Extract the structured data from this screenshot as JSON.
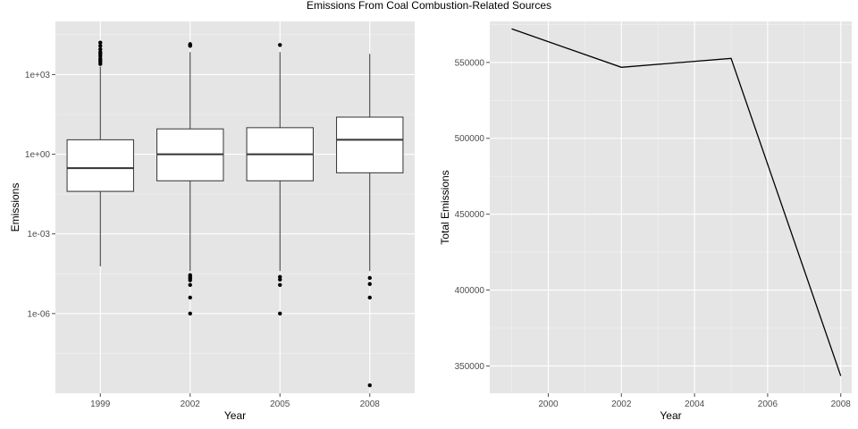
{
  "figure": {
    "title": "Emissions From Coal Combustion-Related Sources"
  },
  "chart_data": [
    {
      "type": "box",
      "panel": "left",
      "xlabel": "Year",
      "ylabel": "Emissions",
      "yscale": "log10",
      "ylim": [
        1e-09,
        100000
      ],
      "ytick_values": [
        1e-06,
        0.001,
        1,
        1000
      ],
      "ytick_labels": [
        "1e-06",
        "1e-03",
        "1e+00",
        "1e+03"
      ],
      "grid": true,
      "categories": [
        "1999",
        "2002",
        "2005",
        "2008"
      ],
      "boxes": [
        {
          "year": "1999",
          "whisker_low": 6e-05,
          "q1": 0.04,
          "median": 0.3,
          "q3": 3.5,
          "whisker_high": 2000,
          "outliers": [
            2500,
            3000,
            3500,
            4000,
            5000,
            6000,
            7000,
            9000,
            12000,
            16000
          ]
        },
        {
          "year": "2002",
          "whisker_low": 4e-05,
          "q1": 0.1,
          "median": 1.0,
          "q3": 9.0,
          "whisker_high": 7000,
          "outliers": [
            2.8e-05,
            2.4e-05,
            2.1e-05,
            1.8e-05,
            1.2e-05,
            4e-06,
            1e-06,
            12000,
            13000,
            14000
          ]
        },
        {
          "year": "2005",
          "whisker_low": 4e-05,
          "q1": 0.1,
          "median": 1.0,
          "q3": 10.0,
          "whisker_high": 7000,
          "outliers": [
            2.4e-05,
            1.9e-05,
            1.2e-05,
            1e-06,
            13000
          ]
        },
        {
          "year": "2008",
          "whisker_low": 4e-05,
          "q1": 0.2,
          "median": 3.5,
          "q3": 25.0,
          "whisker_high": 6000,
          "outliers": [
            2.2e-05,
            1.3e-05,
            4e-06,
            2e-09
          ]
        }
      ]
    },
    {
      "type": "line",
      "panel": "right",
      "xlabel": "Year",
      "ylabel": "Total Emissions",
      "xlim": [
        1998.4,
        2008.3
      ],
      "ylim": [
        332000,
        577000
      ],
      "xtick_values": [
        2000,
        2002,
        2004,
        2006,
        2008
      ],
      "xtick_labels": [
        "2000",
        "2002",
        "2004",
        "2006",
        "2008"
      ],
      "ytick_values": [
        350000,
        400000,
        450000,
        500000,
        550000
      ],
      "ytick_labels": [
        "350000",
        "400000",
        "450000",
        "500000",
        "550000"
      ],
      "grid": true,
      "x": [
        1999,
        2002,
        2005,
        2008
      ],
      "y": [
        572126,
        546789,
        552675,
        343432
      ]
    }
  ]
}
